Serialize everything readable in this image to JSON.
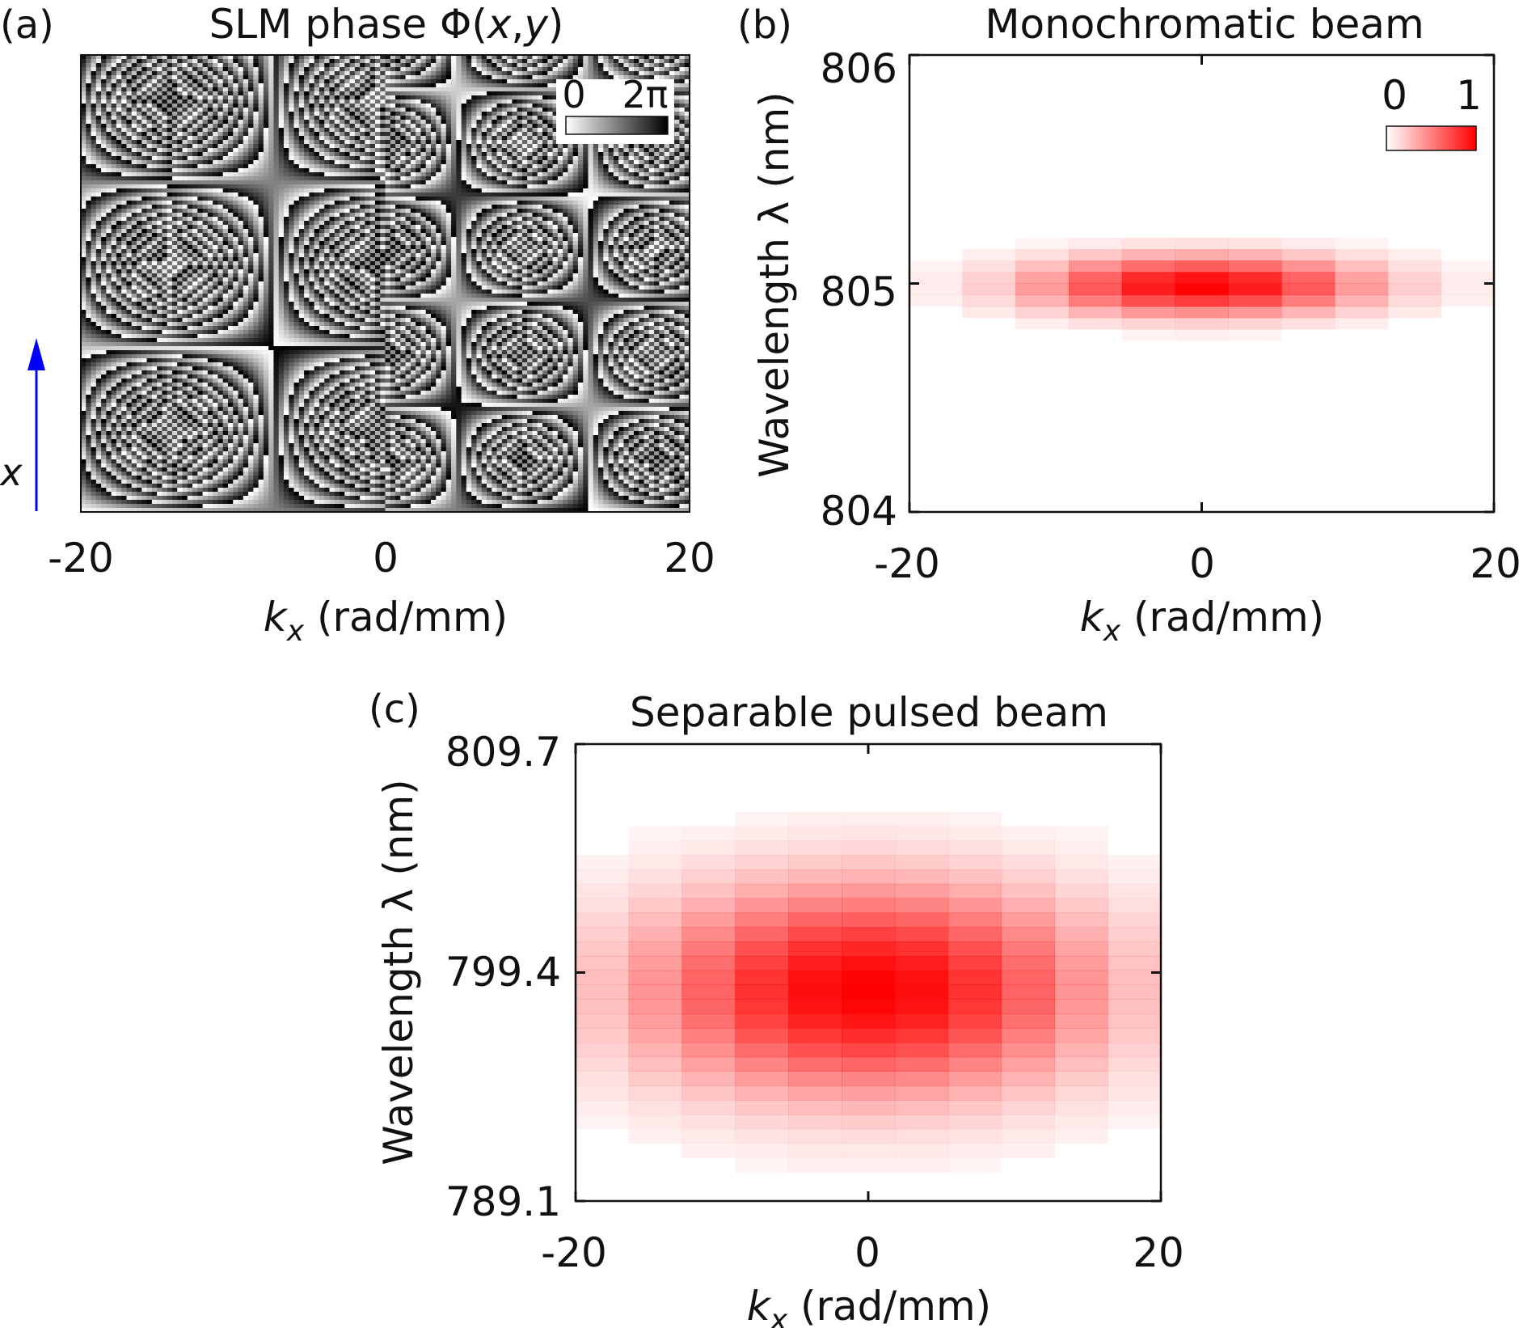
{
  "chart_data": [
    {
      "panel": "(a)",
      "type": "heatmap",
      "title": "SLM phase Φ(x,y)",
      "title_parts": [
        "SLM phase Φ(",
        "x",
        ",",
        "y",
        ")"
      ],
      "x": [
        -20,
        0,
        20
      ],
      "xticklabels": [
        "-20",
        "0",
        "20"
      ],
      "xlim": [
        -20,
        20
      ],
      "xlabel": [
        "k",
        "x",
        " (rad/mm)"
      ],
      "ylabel": "x",
      "colorbar": {
        "min_label": "0",
        "max_label": "2π",
        "colormap": "white-to-black",
        "placement": "top-right"
      },
      "phase_fringes": {
        "left_tilt_slope": 3.2,
        "right_tilt_slope": 5.0,
        "band_periods": 52
      },
      "axis_arrow_color": "#0000ff"
    },
    {
      "panel": "(b)",
      "type": "heatmap",
      "title": "Monochromatic beam",
      "x": [
        -20,
        0,
        20
      ],
      "xticklabels": [
        "-20",
        "0",
        "20"
      ],
      "xlim": [
        -20,
        20
      ],
      "xlabel": [
        "k",
        "x",
        " (rad/mm)"
      ],
      "ylabel": "Wavelength λ (nm)",
      "ylim": [
        804,
        806
      ],
      "yticks": [
        804,
        805,
        806
      ],
      "yticklabels": [
        "804",
        "805",
        "806"
      ],
      "colorbar": {
        "min_label": "0",
        "max_label": "1",
        "colormap": "white-to-red",
        "placement": "top-right"
      },
      "spot": {
        "center_kx": 0,
        "center_lambda": 804.99,
        "sigma_kx": 8.0,
        "sigma_lambda": 0.09,
        "kx_bin": 3.64,
        "lambda_bin": 0.05
      }
    },
    {
      "panel": "(c)",
      "type": "heatmap",
      "title": "Separable pulsed beam",
      "x": [
        -20,
        0,
        20
      ],
      "xticklabels": [
        "-20",
        "0",
        "20"
      ],
      "xlim": [
        -20,
        20
      ],
      "xlabel": [
        "k",
        "x",
        " (rad/mm)"
      ],
      "ylabel": "Wavelength λ (nm)",
      "ylim": [
        789.1,
        809.7
      ],
      "yticks": [
        789.1,
        799.4,
        809.7
      ],
      "yticklabels": [
        "789.1",
        "799.4",
        "809.7"
      ],
      "spot": {
        "center_kx": 0,
        "center_lambda": 798.6,
        "sigma_kx": 11.0,
        "sigma_lambda": 3.3,
        "kx_bin": 3.64,
        "lambda_bin": 0.65
      }
    }
  ],
  "colors": {
    "axis": "#111111",
    "spot_red": "#ff0000",
    "arrow_blue": "#0000ff"
  }
}
